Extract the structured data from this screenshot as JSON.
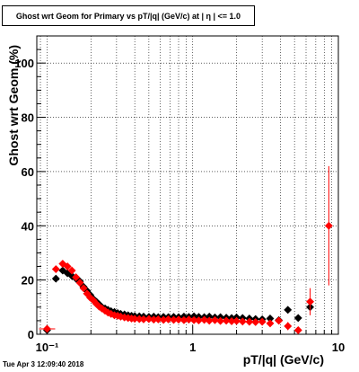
{
  "chart_data": {
    "type": "scatter",
    "title": "Ghost wrt Geom for Primary vs pT/|q| (GeV/c) at | η | <= 1.0",
    "xlabel": "pT/|q| (GeV/c)",
    "ylabel": "Ghost wrt Geom (%)",
    "xscale": "log",
    "xlim": [
      0.085,
      10
    ],
    "ylim": [
      0,
      110
    ],
    "grid": true,
    "x_ticks": [
      {
        "value": 0.1,
        "label": "10⁻¹"
      },
      {
        "value": 1,
        "label": "1"
      },
      {
        "value": 10,
        "label": "10"
      }
    ],
    "y_ticks": [
      {
        "value": 0,
        "label": "0"
      },
      {
        "value": 20,
        "label": "20"
      },
      {
        "value": 40,
        "label": "40"
      },
      {
        "value": 60,
        "label": "60"
      },
      {
        "value": 80,
        "label": "80"
      },
      {
        "value": 100,
        "label": "100"
      }
    ],
    "series": [
      {
        "color": "#000000",
        "marker": "diamond",
        "points": [
          {
            "x": 0.1,
            "y": 1.5
          },
          {
            "x": 0.115,
            "y": 20.5
          },
          {
            "x": 0.128,
            "y": 23.5
          },
          {
            "x": 0.138,
            "y": 22.5
          },
          {
            "x": 0.148,
            "y": 21.5
          },
          {
            "x": 0.158,
            "y": 20.5
          },
          {
            "x": 0.168,
            "y": 19.5
          },
          {
            "x": 0.178,
            "y": 17.5
          },
          {
            "x": 0.188,
            "y": 16
          },
          {
            "x": 0.198,
            "y": 14.5
          },
          {
            "x": 0.208,
            "y": 13
          },
          {
            "x": 0.218,
            "y": 12
          },
          {
            "x": 0.228,
            "y": 11
          },
          {
            "x": 0.238,
            "y": 10
          },
          {
            "x": 0.25,
            "y": 9.5
          },
          {
            "x": 0.262,
            "y": 9
          },
          {
            "x": 0.275,
            "y": 8.5
          },
          {
            "x": 0.29,
            "y": 8.2
          },
          {
            "x": 0.305,
            "y": 7.8
          },
          {
            "x": 0.32,
            "y": 7.5
          },
          {
            "x": 0.34,
            "y": 7.3
          },
          {
            "x": 0.36,
            "y": 7
          },
          {
            "x": 0.38,
            "y": 6.8
          },
          {
            "x": 0.4,
            "y": 6.7
          },
          {
            "x": 0.43,
            "y": 6.6
          },
          {
            "x": 0.46,
            "y": 6.5
          },
          {
            "x": 0.5,
            "y": 6.4
          },
          {
            "x": 0.54,
            "y": 6.5
          },
          {
            "x": 0.58,
            "y": 6.3
          },
          {
            "x": 0.63,
            "y": 6.4
          },
          {
            "x": 0.68,
            "y": 6.3
          },
          {
            "x": 0.74,
            "y": 6.4
          },
          {
            "x": 0.8,
            "y": 6.3
          },
          {
            "x": 0.87,
            "y": 6.5
          },
          {
            "x": 0.94,
            "y": 6.4
          },
          {
            "x": 1.02,
            "y": 6.6
          },
          {
            "x": 1.1,
            "y": 6.4
          },
          {
            "x": 1.2,
            "y": 6.3
          },
          {
            "x": 1.3,
            "y": 6.5
          },
          {
            "x": 1.42,
            "y": 6.2
          },
          {
            "x": 1.55,
            "y": 6.3
          },
          {
            "x": 1.7,
            "y": 6.1
          },
          {
            "x": 1.85,
            "y": 6
          },
          {
            "x": 2.0,
            "y": 6.2
          },
          {
            "x": 2.2,
            "y": 6
          },
          {
            "x": 2.45,
            "y": 5.8
          },
          {
            "x": 2.7,
            "y": 5.6
          },
          {
            "x": 3.0,
            "y": 5.5
          },
          {
            "x": 3.4,
            "y": 5.8
          },
          {
            "x": 3.9,
            "y": 5.2
          },
          {
            "x": 4.5,
            "y": 9
          },
          {
            "x": 5.3,
            "y": 6
          },
          {
            "x": 6.4,
            "y": 10
          }
        ]
      },
      {
        "color": "#ff0000",
        "marker": "diamond",
        "points": [
          {
            "x": 0.1,
            "y": 2,
            "err": 0.6
          },
          {
            "x": 0.115,
            "y": 24,
            "err": 1.2
          },
          {
            "x": 0.128,
            "y": 26,
            "err": 1
          },
          {
            "x": 0.138,
            "y": 25,
            "err": 1
          },
          {
            "x": 0.148,
            "y": 23.5,
            "err": 1
          },
          {
            "x": 0.158,
            "y": 21,
            "err": 0.9
          },
          {
            "x": 0.168,
            "y": 19,
            "err": 0.8
          },
          {
            "x": 0.178,
            "y": 17,
            "err": 0.8
          },
          {
            "x": 0.188,
            "y": 15,
            "err": 0.7
          },
          {
            "x": 0.198,
            "y": 13.5,
            "err": 0.6
          },
          {
            "x": 0.208,
            "y": 12.5,
            "err": 0.6
          },
          {
            "x": 0.218,
            "y": 11.2,
            "err": 0.5
          },
          {
            "x": 0.228,
            "y": 10.2,
            "err": 0.5
          },
          {
            "x": 0.238,
            "y": 9.5,
            "err": 0.5
          },
          {
            "x": 0.25,
            "y": 8.7,
            "err": 0.4
          },
          {
            "x": 0.262,
            "y": 8,
            "err": 0.4
          },
          {
            "x": 0.275,
            "y": 7.5,
            "err": 0.4
          },
          {
            "x": 0.29,
            "y": 7,
            "err": 0.4
          },
          {
            "x": 0.305,
            "y": 6.8,
            "err": 0.3
          },
          {
            "x": 0.32,
            "y": 6.5,
            "err": 0.3
          },
          {
            "x": 0.34,
            "y": 6.2,
            "err": 0.3
          },
          {
            "x": 0.36,
            "y": 6,
            "err": 0.3
          },
          {
            "x": 0.38,
            "y": 5.8,
            "err": 0.3
          },
          {
            "x": 0.4,
            "y": 5.7,
            "err": 0.3
          },
          {
            "x": 0.43,
            "y": 5.6,
            "err": 0.3
          },
          {
            "x": 0.46,
            "y": 5.5,
            "err": 0.3
          },
          {
            "x": 0.5,
            "y": 5.6,
            "err": 0.3
          },
          {
            "x": 0.54,
            "y": 5.4,
            "err": 0.3
          },
          {
            "x": 0.58,
            "y": 5.5,
            "err": 0.3
          },
          {
            "x": 0.63,
            "y": 5.3,
            "err": 0.3
          },
          {
            "x": 0.68,
            "y": 5.5,
            "err": 0.3
          },
          {
            "x": 0.74,
            "y": 5.3,
            "err": 0.3
          },
          {
            "x": 0.8,
            "y": 5.4,
            "err": 0.3
          },
          {
            "x": 0.87,
            "y": 5.2,
            "err": 0.3
          },
          {
            "x": 0.94,
            "y": 5.4,
            "err": 0.3
          },
          {
            "x": 1.02,
            "y": 5.2,
            "err": 0.3
          },
          {
            "x": 1.1,
            "y": 5.1,
            "err": 0.3
          },
          {
            "x": 1.2,
            "y": 5.3,
            "err": 0.3
          },
          {
            "x": 1.3,
            "y": 5,
            "err": 0.3
          },
          {
            "x": 1.42,
            "y": 5.2,
            "err": 0.3
          },
          {
            "x": 1.55,
            "y": 4.9,
            "err": 0.3
          },
          {
            "x": 1.7,
            "y": 5,
            "err": 0.3
          },
          {
            "x": 1.85,
            "y": 4.8,
            "err": 0.3
          },
          {
            "x": 2.0,
            "y": 4.9,
            "err": 0.4
          },
          {
            "x": 2.2,
            "y": 4.7,
            "err": 0.4
          },
          {
            "x": 2.45,
            "y": 4.6,
            "err": 0.5
          },
          {
            "x": 2.7,
            "y": 4.5,
            "err": 0.6
          },
          {
            "x": 3.0,
            "y": 4.6,
            "err": 0.7
          },
          {
            "x": 3.4,
            "y": 4,
            "err": 0.8
          },
          {
            "x": 3.9,
            "y": 5,
            "err": 1.2
          },
          {
            "x": 4.5,
            "y": 3,
            "err": 1.5
          },
          {
            "x": 5.3,
            "y": 1.5,
            "err": 1.2
          },
          {
            "x": 6.4,
            "y": 12,
            "err": 5
          },
          {
            "x": 8.6,
            "y": 40,
            "err": 22
          }
        ]
      }
    ]
  },
  "footer": {
    "timestamp": "Tue Apr  3 12:09:40 2018"
  }
}
